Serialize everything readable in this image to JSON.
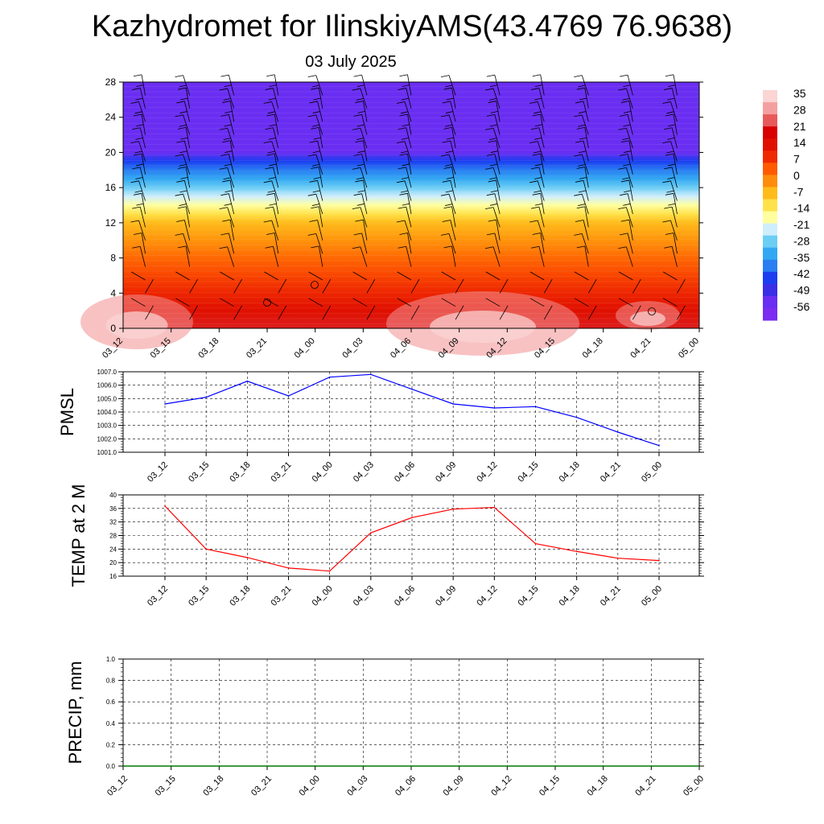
{
  "header": {
    "title": "Kazhydromet for IlinskiyAMS(43.4769 76.9638)",
    "date": "03 July 2025"
  },
  "colors": {
    "pmsl_line": "#0000ff",
    "temp_line": "#ff0000",
    "precip_line": "#007a00",
    "colorbar": [
      "#7b2cf0",
      "#6a2ef2",
      "#3a2ee6",
      "#1a3ef0",
      "#2a7ef2",
      "#33a8f2",
      "#6ccdf5",
      "#cfeefc",
      "#ffffa0",
      "#ffe24a",
      "#ffbb1a",
      "#ff8c0a",
      "#ff5a00",
      "#f02a00",
      "#e01000",
      "#d80000",
      "#e85a5a",
      "#f5a0a0",
      "#fbd4d4"
    ]
  },
  "chart_data": [
    {
      "id": "cross_section",
      "type": "heatmap",
      "title": "",
      "xlabel": "",
      "ylabel": "",
      "categories": [
        "03_12",
        "03_15",
        "03_18",
        "03_21",
        "04_00",
        "04_03",
        "04_06",
        "04_09",
        "04_12",
        "04_15",
        "04_18",
        "04_21",
        "05_00"
      ],
      "ylim": [
        0,
        28
      ],
      "yticks": [
        0,
        4,
        8,
        12,
        16,
        20,
        24,
        28
      ],
      "levels": [
        0,
        2,
        4,
        6,
        8,
        10,
        12,
        13,
        14,
        15,
        16,
        17,
        18,
        19,
        20,
        21,
        22,
        24,
        26,
        28
      ],
      "temperature_profile": [
        30,
        26,
        22,
        17,
        12,
        6,
        0,
        -7,
        -14,
        -21,
        -28,
        -35,
        -42,
        -49,
        -56,
        -56,
        -56,
        -56,
        -56,
        -56
      ],
      "colorbar": {
        "labels": [
          "35",
          "28",
          "21",
          "14",
          "7",
          "0",
          "-7",
          "-14",
          "-21",
          "-28",
          "-35",
          "-42",
          "-49",
          "-56"
        ]
      },
      "grid": false
    },
    {
      "id": "pmsl",
      "type": "line",
      "ylabel": "PMSL",
      "categories": [
        "03_12",
        "03_15",
        "03_18",
        "03_21",
        "04_00",
        "04_03",
        "04_06",
        "04_09",
        "04_12",
        "04_15",
        "04_18",
        "04_21",
        "05_00"
      ],
      "series": [
        {
          "values": [
            1004.6,
            1005.1,
            1006.3,
            1005.2,
            1006.6,
            1006.8,
            1005.7,
            1004.6,
            1004.3,
            1004.4,
            1003.6,
            1002.5,
            1001.5
          ]
        }
      ],
      "ylim": [
        1001.0,
        1007.0
      ],
      "yticks": [
        "1001.0",
        "1002.0",
        "1003.0",
        "1004.0",
        "1005.0",
        "1006.0",
        "1007.0"
      ],
      "grid": true
    },
    {
      "id": "temp2m",
      "type": "line",
      "ylabel": "TEMP at 2 M",
      "categories": [
        "03_12",
        "03_15",
        "03_18",
        "03_21",
        "04_00",
        "04_03",
        "04_06",
        "04_09",
        "04_12",
        "04_15",
        "04_18",
        "04_21",
        "05_00"
      ],
      "series": [
        {
          "values": [
            36.7,
            24.0,
            21.5,
            18.4,
            17.5,
            28.8,
            33.3,
            35.8,
            36.3,
            25.6,
            23.3,
            21.3,
            20.6
          ]
        }
      ],
      "ylim": [
        16,
        40
      ],
      "yticks": [
        "16",
        "20",
        "24",
        "28",
        "32",
        "36",
        "40"
      ],
      "grid": true
    },
    {
      "id": "precip",
      "type": "line",
      "ylabel": "PRECIP, mm",
      "categories": [
        "03_12",
        "03_15",
        "03_18",
        "03_21",
        "04_00",
        "04_03",
        "04_06",
        "04_09",
        "04_12",
        "04_15",
        "04_18",
        "04_21",
        "05_00"
      ],
      "series": [
        {
          "values": [
            0,
            0,
            0,
            0,
            0,
            0,
            0,
            0,
            0,
            0,
            0,
            0,
            0
          ]
        }
      ],
      "ylim": [
        0,
        1.0
      ],
      "yticks": [
        "0.0",
        "0.2",
        "0.4",
        "0.6",
        "0.8",
        "1.0"
      ],
      "grid": true
    }
  ]
}
